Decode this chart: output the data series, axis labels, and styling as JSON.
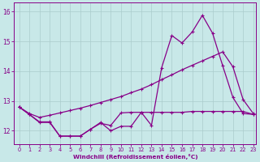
{
  "xlabel": "Windchill (Refroidissement éolien,°C)",
  "background_color": "#c8e8e8",
  "grid_color": "#aacccc",
  "line_color": "#880088",
  "xlim_min": -0.5,
  "xlim_max": 23.3,
  "ylim_min": 11.55,
  "ylim_max": 16.3,
  "yticks": [
    12,
    13,
    14,
    15,
    16
  ],
  "xticks": [
    0,
    1,
    2,
    3,
    4,
    5,
    6,
    7,
    8,
    9,
    10,
    11,
    12,
    13,
    14,
    15,
    16,
    17,
    18,
    19,
    20,
    21,
    22,
    23
  ],
  "lineA_x": [
    0,
    1,
    2,
    3,
    4,
    5,
    6,
    7,
    8,
    9,
    10,
    11,
    12,
    13,
    14,
    15,
    16,
    17,
    18,
    19,
    20,
    21,
    22,
    23
  ],
  "lineA_y": [
    12.8,
    12.58,
    12.45,
    12.52,
    12.6,
    12.68,
    12.76,
    12.85,
    12.95,
    13.05,
    13.15,
    13.28,
    13.4,
    13.55,
    13.72,
    13.88,
    14.05,
    14.2,
    14.35,
    14.5,
    14.65,
    14.15,
    13.05,
    12.58
  ],
  "lineB_x": [
    0,
    1,
    2,
    3,
    4,
    5,
    6,
    7,
    8,
    9,
    10,
    11,
    12,
    13,
    14,
    15,
    16,
    17,
    18,
    19,
    20,
    21,
    22,
    23
  ],
  "lineB_y": [
    12.8,
    12.55,
    12.3,
    12.3,
    11.82,
    11.82,
    11.82,
    12.05,
    12.25,
    12.18,
    12.6,
    12.62,
    12.62,
    12.18,
    14.12,
    15.2,
    14.95,
    15.32,
    15.88,
    15.28,
    14.18,
    13.12,
    12.58,
    12.55
  ],
  "lineC_x": [
    0,
    1,
    2,
    3,
    4,
    5,
    6,
    7,
    8,
    9,
    10,
    11,
    12,
    13,
    14,
    15,
    16,
    17,
    18,
    19,
    20,
    21,
    22,
    23
  ],
  "lineC_y": [
    12.8,
    12.55,
    12.28,
    12.28,
    11.82,
    11.82,
    11.82,
    12.05,
    12.28,
    12.0,
    12.15,
    12.15,
    12.62,
    12.62,
    12.62,
    12.62,
    12.62,
    12.65,
    12.65,
    12.65,
    12.65,
    12.65,
    12.65,
    12.55
  ]
}
